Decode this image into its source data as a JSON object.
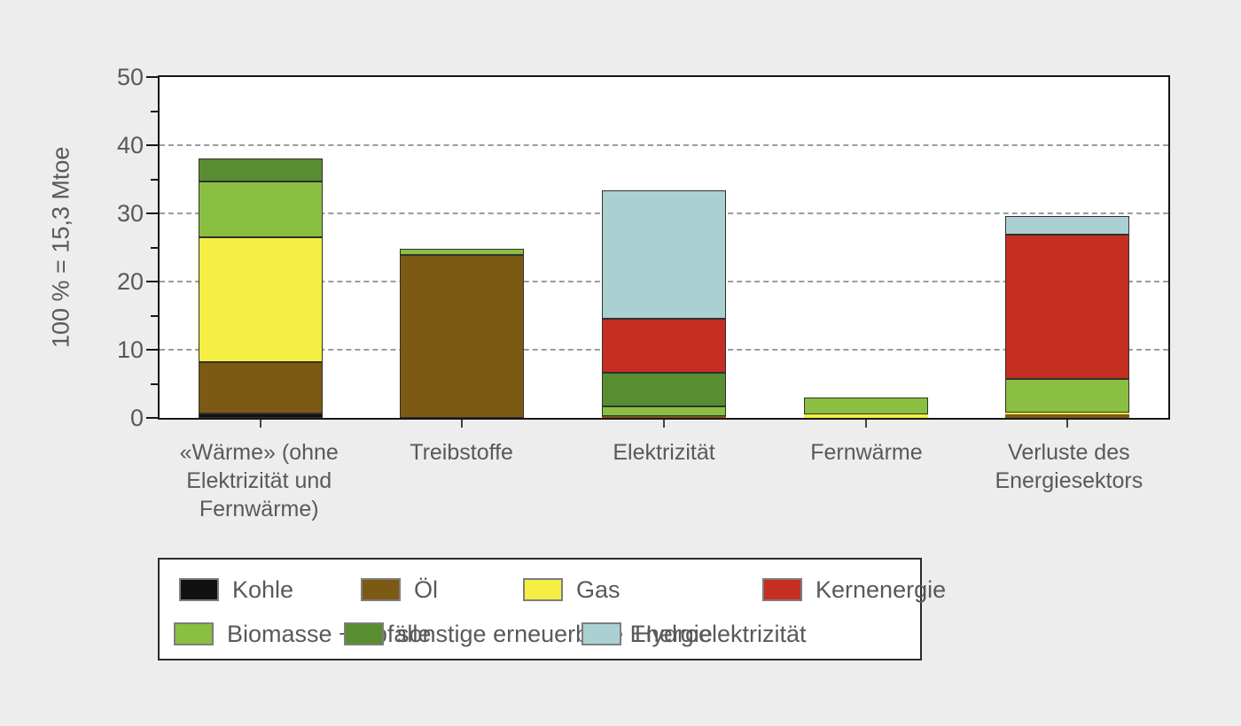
{
  "figure": {
    "background_color": "#ededed",
    "plot_background_color": "#ffffff",
    "frame_color": "#161616",
    "grid_color": "#9c9c9c",
    "text_color": "#58595b"
  },
  "chart_data": {
    "type": "bar",
    "stacked": true,
    "title": "",
    "xlabel": "",
    "ylabel": "100 % = 15,3 Mtoe",
    "ylim": [
      0,
      50
    ],
    "y_major_ticks": [
      0,
      10,
      20,
      30,
      40,
      50
    ],
    "y_minor_ticks": [
      5,
      15,
      25,
      35,
      45
    ],
    "grid_values": [
      10,
      20,
      30,
      40
    ],
    "grid_style": "dashed",
    "legend_position": "bottom",
    "categories": [
      "«Wärme» (ohne Elektrizität und Fernwärme)",
      "Treibstoffe",
      "Elektrizität",
      "Fernwärme",
      "Verluste des Energiesektors"
    ],
    "category_totals": [
      38.0,
      24.8,
      33.35,
      3.0,
      29.6
    ],
    "series": [
      {
        "name": "Kohle",
        "color": "#111111",
        "values": [
          0.7,
          0,
          0,
          0,
          0
        ]
      },
      {
        "name": "Öl",
        "color": "#7d5a13",
        "values": [
          7.5,
          23.9,
          0.25,
          0,
          0.5
        ]
      },
      {
        "name": "Gas",
        "color": "#f5ee43",
        "values": [
          18.3,
          0,
          0,
          0.5,
          0.25
        ]
      },
      {
        "name": "Biomasse + Abfälle",
        "color": "#8abf41",
        "values": [
          8.2,
          0.9,
          1.5,
          2.5,
          5.0
        ]
      },
      {
        "name": "sonstige erneuerbare Energie",
        "color": "#588e2f",
        "values": [
          3.3,
          0,
          4.85,
          0,
          0
        ]
      },
      {
        "name": "Kernenergie",
        "color": "#c52f22",
        "values": [
          0,
          0,
          8.0,
          0,
          21.2
        ]
      },
      {
        "name": "Hydroelektrizität",
        "color": "#abd0d2",
        "values": [
          0,
          0,
          18.75,
          0,
          2.65
        ]
      }
    ]
  },
  "y_axis": {
    "title": "100 % = 15,3 Mtoe",
    "tick_labels": [
      "0",
      "10",
      "20",
      "30",
      "40",
      "50"
    ]
  },
  "legend": {
    "rows": [
      [
        "Kohle",
        "Öl",
        "Gas",
        "Kernenergie"
      ],
      [
        "Biomasse + Abfälle",
        "sonstige erneuerbare Energie",
        "Hydroelektrizität"
      ]
    ]
  }
}
